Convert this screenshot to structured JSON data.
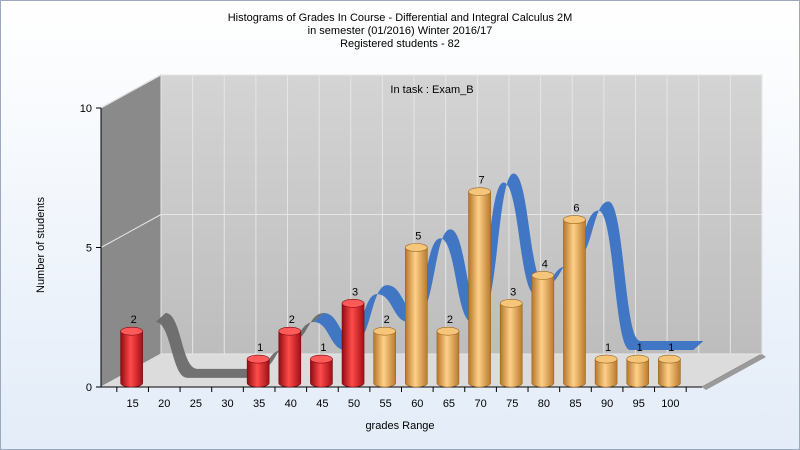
{
  "chart_data": {
    "type": "bar",
    "title": [
      "Histograms of Grades  In Course - Differential and Integral Calculus 2M",
      "in semester  (01/2016) Winter 2016/17",
      "Registered students - 82"
    ],
    "annotation": "In task : Exam_B",
    "xlabel": "grades Range",
    "ylabel": "Number of students",
    "ylim": [
      0,
      10
    ],
    "y_ticks": [
      0,
      5,
      10
    ],
    "x_ticks": [
      "15",
      "20",
      "25",
      "30",
      "35",
      "40",
      "45",
      "50",
      "55",
      "60",
      "65",
      "70",
      "75",
      "80",
      "85",
      "90",
      "95",
      "100"
    ],
    "bars": [
      {
        "x": 15,
        "value": 2,
        "color": "red"
      },
      {
        "x": 20,
        "value": 0,
        "color": "red"
      },
      {
        "x": 25,
        "value": 0,
        "color": "red"
      },
      {
        "x": 30,
        "value": 0,
        "color": "red"
      },
      {
        "x": 35,
        "value": 1,
        "color": "red"
      },
      {
        "x": 40,
        "value": 2,
        "color": "red"
      },
      {
        "x": 45,
        "value": 1,
        "color": "red"
      },
      {
        "x": 50,
        "value": 3,
        "color": "red"
      },
      {
        "x": 55,
        "value": 2,
        "color": "orange"
      },
      {
        "x": 60,
        "value": 5,
        "color": "orange"
      },
      {
        "x": 65,
        "value": 2,
        "color": "orange"
      },
      {
        "x": 70,
        "value": 7,
        "color": "orange"
      },
      {
        "x": 75,
        "value": 3,
        "color": "orange"
      },
      {
        "x": 80,
        "value": 4,
        "color": "orange"
      },
      {
        "x": 85,
        "value": 6,
        "color": "orange"
      },
      {
        "x": 90,
        "value": 1,
        "color": "orange"
      },
      {
        "x": 95,
        "value": 1,
        "color": "orange"
      },
      {
        "x": 100,
        "value": 1,
        "color": "orange"
      }
    ],
    "grid": true,
    "colors": {
      "red": "#e0202a",
      "orange": "#e8a94a",
      "curve_blue": "#3a72c4",
      "curve_gray": "#6a6a6a",
      "wall": "#c8c8c8",
      "side_wall": "#8a8a8a"
    }
  }
}
